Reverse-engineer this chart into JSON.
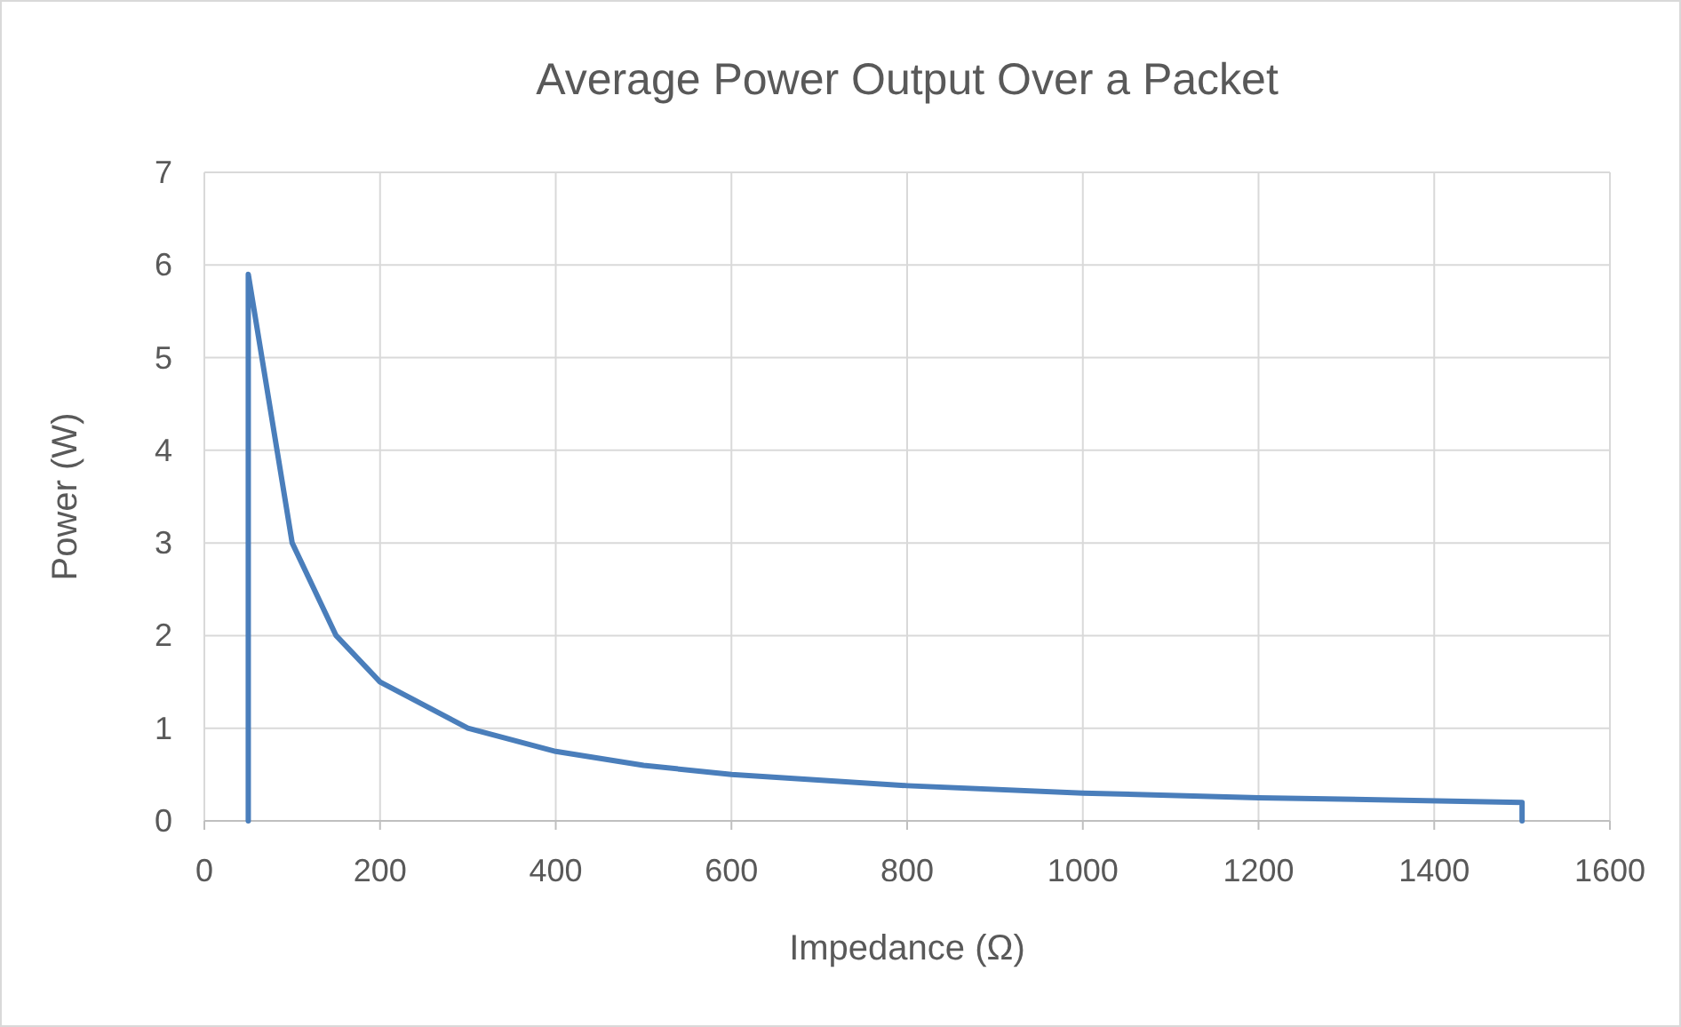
{
  "chart_data": {
    "type": "line",
    "title": "Average Power Output Over a Packet",
    "xlabel": "Impedance (Ω)",
    "ylabel": "Power (W)",
    "x": [
      50,
      50,
      100,
      150,
      200,
      300,
      400,
      500,
      600,
      800,
      1000,
      1200,
      1500,
      1500
    ],
    "series": [
      {
        "color": "#4a7ebb",
        "values": [
          0,
          5.9,
          3,
          2,
          1.5,
          1,
          0.75,
          0.6,
          0.5,
          0.38,
          0.3,
          0.25,
          0.2,
          0
        ]
      }
    ],
    "xlim": [
      0,
      1600
    ],
    "xticks": [
      0,
      200,
      400,
      600,
      800,
      1000,
      1200,
      1400,
      1600
    ],
    "ylim": [
      0,
      7
    ],
    "yticks": [
      0,
      1,
      2,
      3,
      4,
      5,
      6,
      7
    ],
    "grid": true,
    "marker": "none",
    "line_style": "solid"
  }
}
